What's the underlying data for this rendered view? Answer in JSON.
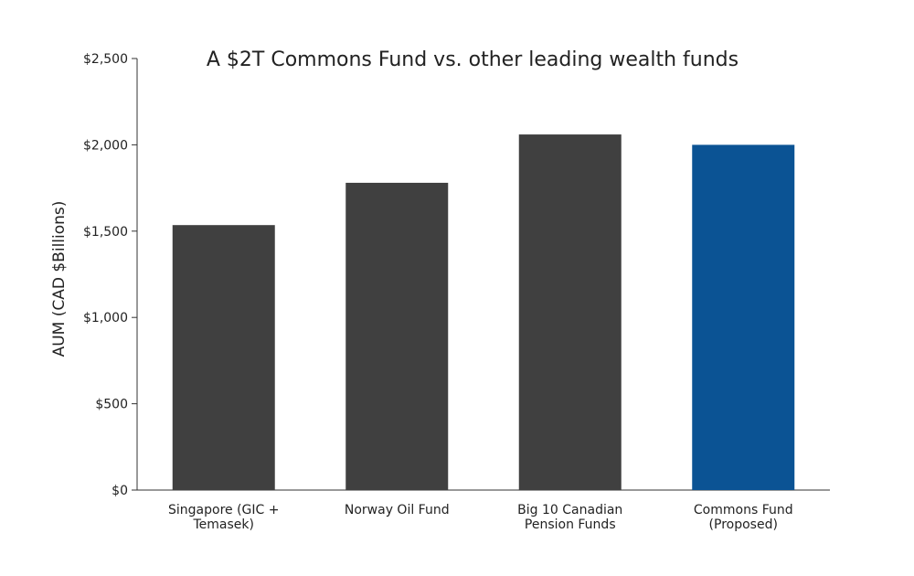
{
  "chart_data": {
    "type": "bar",
    "title": "A $2T Commons Fund vs. other leading wealth funds",
    "ylabel": "AUM (CAD $Billions)",
    "xlabel": "",
    "ylim": [
      0,
      2500
    ],
    "yticks": [
      {
        "value": 0,
        "label": "$0"
      },
      {
        "value": 500,
        "label": "$500"
      },
      {
        "value": 1000,
        "label": "$1,000"
      },
      {
        "value": 1500,
        "label": "$1,500"
      },
      {
        "value": 2000,
        "label": "$2,000"
      },
      {
        "value": 2500,
        "label": "$2,500"
      }
    ],
    "categories": [
      [
        "Singapore (GIC +",
        "Temasek)"
      ],
      [
        "Norway Oil Fund"
      ],
      [
        "Big 10 Canadian",
        "Pension Funds"
      ],
      [
        "Commons Fund",
        "(Proposed)"
      ]
    ],
    "values": [
      1535,
      1780,
      2060,
      2000
    ],
    "colors": [
      "#404040",
      "#404040",
      "#404040",
      "#0b5394"
    ],
    "grid": false,
    "legend": "none"
  }
}
